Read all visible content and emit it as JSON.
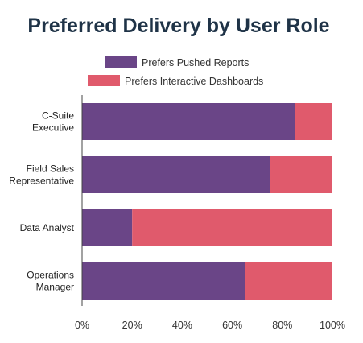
{
  "chart_data": {
    "type": "bar",
    "orientation": "horizontal",
    "stacked": true,
    "title": "Preferred Delivery by User Role",
    "xlabel": "",
    "ylabel": "",
    "xlim": [
      0,
      100
    ],
    "x_ticks": [
      "0%",
      "20%",
      "40%",
      "60%",
      "80%",
      "100%"
    ],
    "categories": [
      [
        "C-Suite",
        "Executive"
      ],
      [
        "Field Sales",
        "Representative"
      ],
      [
        "Data Analyst"
      ],
      [
        "Operations",
        "Manager"
      ]
    ],
    "series": [
      {
        "name": "Prefers Pushed Reports",
        "values": [
          85,
          75,
          20,
          65
        ],
        "color": "#6a4587"
      },
      {
        "name": "Prefers Interactive Dashboards",
        "values": [
          15,
          25,
          80,
          35
        ],
        "color": "#e05a6c"
      }
    ],
    "legend_position": "top",
    "grid": false
  }
}
